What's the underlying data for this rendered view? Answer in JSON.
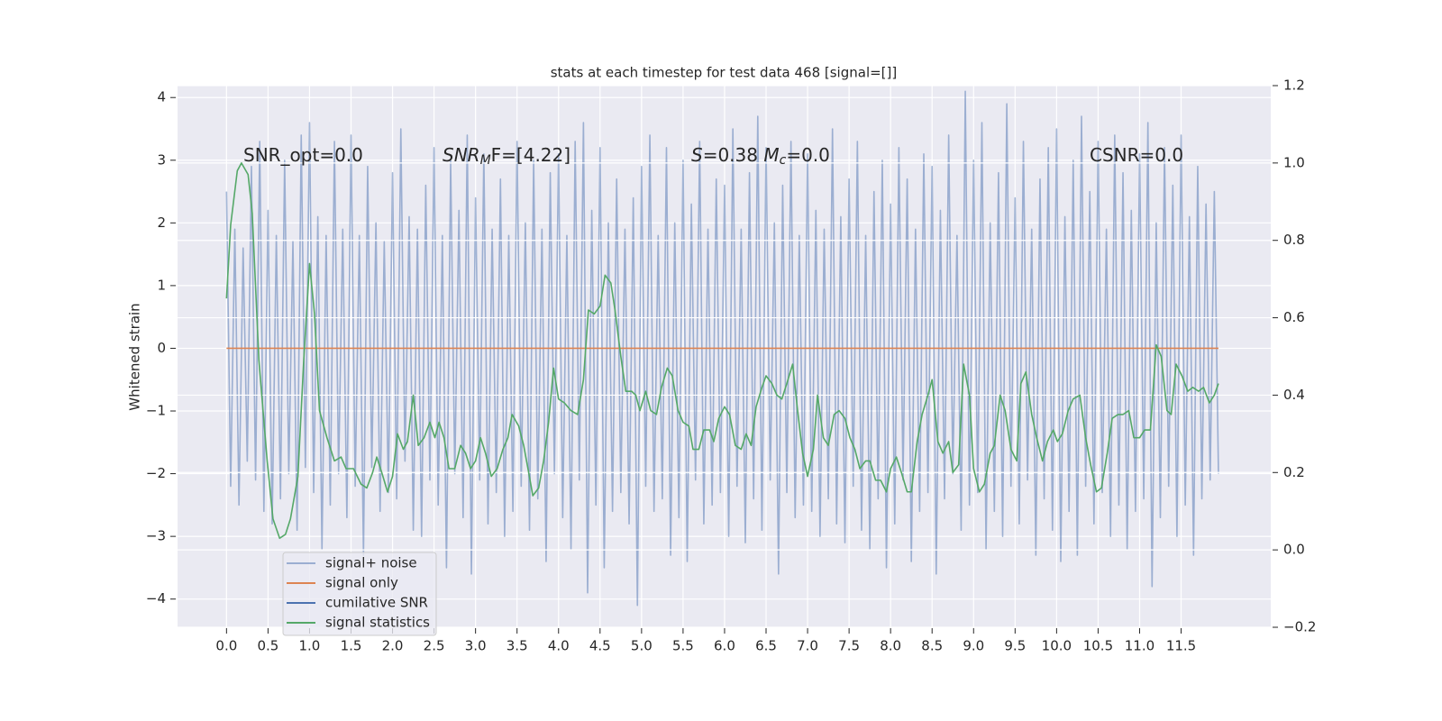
{
  "chart_data": {
    "type": "line",
    "title": "stats at each timestep for test data 468 [signal=[]]",
    "ylabel": "Whitened strain",
    "xlim": [
      -0.59,
      12.58
    ],
    "ylim": [
      -4.45,
      4.19
    ],
    "y2lim": [
      -0.2,
      1.2
    ],
    "xticks": [
      {
        "value": 0,
        "label": "0.0"
      },
      {
        "value": 0.5,
        "label": "0.5"
      },
      {
        "value": 1,
        "label": "1.0"
      },
      {
        "value": 1.5,
        "label": "1.5"
      },
      {
        "value": 2,
        "label": "2.0"
      },
      {
        "value": 2.5,
        "label": "2.5"
      },
      {
        "value": 3,
        "label": "3.0"
      },
      {
        "value": 3.5,
        "label": "3.5"
      },
      {
        "value": 4,
        "label": "4.0"
      },
      {
        "value": 4.5,
        "label": "4.5"
      },
      {
        "value": 5,
        "label": "5.0"
      },
      {
        "value": 5.5,
        "label": "5.5"
      },
      {
        "value": 6,
        "label": "6.0"
      },
      {
        "value": 6.5,
        "label": "6.5"
      },
      {
        "value": 7,
        "label": "7.0"
      },
      {
        "value": 7.5,
        "label": "7.5"
      },
      {
        "value": 8,
        "label": "8.0"
      },
      {
        "value": 8.5,
        "label": "8.5"
      },
      {
        "value": 9,
        "label": "9.0"
      },
      {
        "value": 9.5,
        "label": "9.5"
      },
      {
        "value": 10,
        "label": "10.0"
      },
      {
        "value": 10.5,
        "label": "10.5"
      },
      {
        "value": 11,
        "label": "11.0"
      },
      {
        "value": 11.5,
        "label": "11.5"
      }
    ],
    "yticks": [
      {
        "value": -4,
        "label": "−4"
      },
      {
        "value": -3,
        "label": "−3"
      },
      {
        "value": -2,
        "label": "−2"
      },
      {
        "value": -1,
        "label": "−1"
      },
      0,
      1,
      2,
      3,
      4
    ],
    "y2ticks": [
      {
        "value": -0.2,
        "label": "−0.2"
      },
      {
        "value": 0,
        "label": "0.0"
      },
      {
        "value": 0.2,
        "label": "0.2"
      },
      {
        "value": 0.4,
        "label": "0.4"
      },
      {
        "value": 0.6,
        "label": "0.6"
      },
      {
        "value": 0.8,
        "label": "0.8"
      },
      {
        "value": 1,
        "label": "1.0"
      },
      {
        "value": 1.2,
        "label": "1.2"
      }
    ],
    "grid": true,
    "legend": "lower left",
    "annotations": [
      [
        {
          "text": "SNR_opt=0.0"
        }
      ],
      [
        {
          "text": "SNR",
          "style": "italic"
        },
        {
          "text": "M",
          "style": "sub"
        },
        {
          "text": "F=[4.22]"
        }
      ],
      [
        {
          "text": "S",
          "style": "italic"
        },
        {
          "text": "=0.38   "
        },
        {
          "text": "M",
          "style": "italic"
        },
        {
          "text": "c",
          "style": "sub"
        },
        {
          "text": "=0.0"
        }
      ],
      [
        {
          "text": "CSNR=0.0"
        }
      ]
    ],
    "series": [
      {
        "name": "signal+ noise",
        "color": "#4c72b0",
        "alpha": 0.5,
        "x": [
          0,
          0.05,
          0.1,
          0.15,
          0.2,
          0.25,
          0.3,
          0.35,
          0.4,
          0.45,
          0.5,
          0.55,
          0.6,
          0.65,
          0.7,
          0.75,
          0.8,
          0.85,
          0.9,
          0.95,
          1,
          1.05,
          1.1,
          1.15,
          1.2,
          1.25,
          1.3,
          1.35,
          1.4,
          1.45,
          1.5,
          1.55,
          1.6,
          1.65,
          1.7,
          1.75,
          1.8,
          1.85,
          1.9,
          1.95,
          2,
          2.05,
          2.1,
          2.15,
          2.2,
          2.25,
          2.3,
          2.35,
          2.4,
          2.45,
          2.5,
          2.55,
          2.6,
          2.65,
          2.7,
          2.75,
          2.8,
          2.85,
          2.9,
          2.95,
          3,
          3.05,
          3.1,
          3.15,
          3.2,
          3.25,
          3.3,
          3.35,
          3.4,
          3.45,
          3.5,
          3.55,
          3.6,
          3.65,
          3.7,
          3.75,
          3.8,
          3.85,
          3.9,
          3.95,
          4,
          4.05,
          4.1,
          4.15,
          4.2,
          4.25,
          4.3,
          4.35,
          4.4,
          4.45,
          4.5,
          4.55,
          4.6,
          4.65,
          4.7,
          4.75,
          4.8,
          4.85,
          4.9,
          4.95,
          5,
          5.05,
          5.1,
          5.15,
          5.2,
          5.25,
          5.3,
          5.35,
          5.4,
          5.45,
          5.5,
          5.55,
          5.6,
          5.65,
          5.7,
          5.75,
          5.8,
          5.85,
          5.9,
          5.95,
          6,
          6.05,
          6.1,
          6.15,
          6.2,
          6.25,
          6.3,
          6.35,
          6.4,
          6.45,
          6.5,
          6.55,
          6.6,
          6.65,
          6.7,
          6.75,
          6.8,
          6.85,
          6.9,
          6.95,
          7,
          7.05,
          7.1,
          7.15,
          7.2,
          7.25,
          7.3,
          7.35,
          7.4,
          7.45,
          7.5,
          7.55,
          7.6,
          7.65,
          7.7,
          7.75,
          7.8,
          7.85,
          7.9,
          7.95,
          8,
          8.05,
          8.1,
          8.15,
          8.2,
          8.25,
          8.3,
          8.35,
          8.4,
          8.45,
          8.5,
          8.55,
          8.6,
          8.65,
          8.7,
          8.75,
          8.8,
          8.85,
          8.9,
          8.95,
          9,
          9.05,
          9.1,
          9.15,
          9.2,
          9.25,
          9.3,
          9.35,
          9.4,
          9.45,
          9.5,
          9.55,
          9.6,
          9.65,
          9.7,
          9.75,
          9.8,
          9.85,
          9.9,
          9.95,
          10,
          10.05,
          10.1,
          10.15,
          10.2,
          10.25,
          10.3,
          10.35,
          10.4,
          10.45,
          10.5,
          10.55,
          10.6,
          10.65,
          10.7,
          10.75,
          10.8,
          10.85,
          10.9,
          10.95,
          11,
          11.05,
          11.1,
          11.15,
          11.2,
          11.25,
          11.3,
          11.35,
          11.4,
          11.45,
          11.5,
          11.55,
          11.6,
          11.65,
          11.7,
          11.75,
          11.8,
          11.85,
          11.9,
          11.95
        ],
        "values": [
          2.5,
          -2.2,
          1.9,
          -2.5,
          1.6,
          -1.8,
          2.9,
          -2.1,
          3.3,
          -2.6,
          2.2,
          -2.8,
          1.8,
          -2.4,
          3.0,
          -2.0,
          1.7,
          -2.9,
          3.4,
          -1.9,
          3.6,
          -2.3,
          2.1,
          -3.2,
          1.8,
          -2.5,
          3.3,
          -2.0,
          1.9,
          -2.7,
          3.4,
          -2.2,
          1.8,
          -3.3,
          2.9,
          -1.9,
          2.0,
          -2.6,
          1.7,
          -2.3,
          2.8,
          -2.4,
          3.5,
          -1.8,
          2.1,
          -2.9,
          1.9,
          -3.0,
          2.6,
          -2.1,
          3.2,
          -2.5,
          1.8,
          -3.5,
          3.0,
          -2.0,
          2.2,
          -2.7,
          3.4,
          -3.6,
          2.4,
          -2.1,
          3.1,
          -2.8,
          1.9,
          -2.3,
          2.7,
          -3.0,
          1.8,
          -2.6,
          3.3,
          -2.2,
          2.0,
          -2.9,
          3.0,
          -2.4,
          1.9,
          -3.4,
          2.8,
          -2.0,
          3.1,
          -2.7,
          1.8,
          -3.2,
          3.3,
          -2.1,
          3.6,
          -3.9,
          2.2,
          -2.5,
          3.2,
          -3.5,
          2.0,
          -2.6,
          2.7,
          -2.3,
          1.9,
          -2.8,
          2.4,
          -4.1,
          2.9,
          -2.2,
          3.4,
          -2.6,
          1.8,
          -2.4,
          3.2,
          -3.3,
          2.0,
          -2.7,
          3.0,
          -3.4,
          2.3,
          -2.1,
          3.3,
          -2.8,
          1.9,
          -2.5,
          2.7,
          -2.3,
          2.6,
          -3.0,
          3.5,
          -2.2,
          1.9,
          -3.1,
          2.8,
          -2.4,
          3.7,
          -2.9,
          3.2,
          -2.1,
          2.0,
          -3.6,
          2.6,
          -2.3,
          3.3,
          -2.7,
          1.8,
          -2.5,
          3.1,
          -2.6,
          2.2,
          -3.0,
          1.9,
          -2.4,
          3.5,
          -2.8,
          2.1,
          -3.1,
          2.7,
          -2.2,
          3.3,
          -2.9,
          1.8,
          -3.2,
          2.5,
          -2.4,
          3.0,
          -3.5,
          2.3,
          -2.8,
          3.2,
          -2.1,
          2.7,
          -3.4,
          1.9,
          -2.6,
          3.1,
          -2.3,
          2.9,
          -3.6,
          2.2,
          -2.4,
          3.4,
          -2.0,
          1.8,
          -2.9,
          4.1,
          -2.5,
          3.0,
          -2.3,
          3.6,
          -3.2,
          2.0,
          -2.6,
          2.8,
          -3.0,
          3.9,
          -2.2,
          2.4,
          -2.8,
          3.3,
          -2.1,
          1.9,
          -3.3,
          2.7,
          -2.4,
          3.2,
          -2.9,
          3.5,
          -3.4,
          2.1,
          -2.6,
          3.0,
          -3.3,
          3.7,
          -2.2,
          2.5,
          -2.8,
          3.3,
          -2.3,
          1.9,
          -3.0,
          3.4,
          -2.5,
          2.8,
          -3.2,
          2.2,
          -2.6,
          3.1,
          -2.4,
          3.6,
          -3.8,
          2.0,
          -2.7,
          3.2,
          -2.2,
          2.6,
          -3.0,
          3.4,
          -2.5,
          2.1,
          -3.3,
          2.9,
          -2.4,
          2.3,
          -2.1,
          2.5,
          -2.0
        ]
      },
      {
        "name": "signal only",
        "color": "#dd8452",
        "alpha": 1,
        "x": [
          0,
          11.95
        ],
        "values": [
          0,
          0
        ]
      },
      {
        "name": "cumilative SNR",
        "color": "#4c72b0",
        "alpha": 1,
        "x": [],
        "values": []
      },
      {
        "name": "signal statistics",
        "color": "#55a868",
        "alpha": 1,
        "axis": "y2",
        "x": [
          0,
          0.05,
          0.13,
          0.18,
          0.26,
          0.31,
          0.39,
          0.49,
          0.56,
          0.64,
          0.71,
          0.77,
          0.86,
          0.93,
          1,
          1.06,
          1.12,
          1.21,
          1.3,
          1.38,
          1.44,
          1.53,
          1.62,
          1.69,
          1.76,
          1.81,
          1.87,
          1.94,
          2,
          2.06,
          2.13,
          2.18,
          2.25,
          2.31,
          2.38,
          2.45,
          2.51,
          2.56,
          2.62,
          2.68,
          2.75,
          2.82,
          2.88,
          2.94,
          3,
          3.06,
          3.12,
          3.19,
          3.26,
          3.33,
          3.39,
          3.44,
          3.52,
          3.58,
          3.64,
          3.69,
          3.76,
          3.82,
          3.88,
          3.94,
          4,
          4.07,
          4.15,
          4.23,
          4.3,
          4.36,
          4.43,
          4.5,
          4.56,
          4.63,
          4.68,
          4.75,
          4.81,
          4.88,
          4.93,
          4.98,
          5.05,
          5.11,
          5.18,
          5.24,
          5.31,
          5.37,
          5.44,
          5.5,
          5.57,
          5.62,
          5.69,
          5.75,
          5.82,
          5.87,
          5.93,
          6,
          6.06,
          6.13,
          6.2,
          6.26,
          6.32,
          6.38,
          6.45,
          6.5,
          6.57,
          6.63,
          6.69,
          6.75,
          6.82,
          6.88,
          6.94,
          7,
          7.07,
          7.12,
          7.19,
          7.25,
          7.32,
          7.38,
          7.45,
          7.51,
          7.57,
          7.63,
          7.7,
          7.75,
          7.82,
          7.88,
          7.95,
          8,
          8.07,
          8.13,
          8.2,
          8.25,
          8.32,
          8.38,
          8.45,
          8.5,
          8.57,
          8.63,
          8.7,
          8.75,
          8.82,
          8.88,
          8.95,
          9,
          9.07,
          9.13,
          9.2,
          9.25,
          9.32,
          9.38,
          9.45,
          9.52,
          9.57,
          9.63,
          9.7,
          9.76,
          9.83,
          9.89,
          9.96,
          10.01,
          10.07,
          10.14,
          10.2,
          10.28,
          10.35,
          10.41,
          10.48,
          10.54,
          10.61,
          10.67,
          10.74,
          10.8,
          10.87,
          10.93,
          11,
          11.06,
          11.13,
          11.2,
          11.26,
          11.33,
          11.38,
          11.44,
          11.51,
          11.58,
          11.64,
          11.71,
          11.77,
          11.84,
          11.9,
          11.95
        ],
        "values": [
          0.65,
          0.84,
          0.98,
          1.0,
          0.97,
          0.87,
          0.49,
          0.23,
          0.08,
          0.03,
          0.04,
          0.08,
          0.19,
          0.49,
          0.74,
          0.61,
          0.36,
          0.29,
          0.23,
          0.24,
          0.21,
          0.21,
          0.17,
          0.16,
          0.2,
          0.24,
          0.2,
          0.15,
          0.19,
          0.3,
          0.26,
          0.28,
          0.4,
          0.27,
          0.29,
          0.33,
          0.29,
          0.33,
          0.29,
          0.21,
          0.21,
          0.27,
          0.25,
          0.21,
          0.23,
          0.29,
          0.25,
          0.19,
          0.21,
          0.26,
          0.29,
          0.35,
          0.32,
          0.27,
          0.2,
          0.14,
          0.16,
          0.23,
          0.33,
          0.47,
          0.39,
          0.38,
          0.36,
          0.35,
          0.44,
          0.62,
          0.61,
          0.63,
          0.71,
          0.69,
          0.62,
          0.5,
          0.41,
          0.41,
          0.4,
          0.36,
          0.41,
          0.36,
          0.35,
          0.42,
          0.47,
          0.45,
          0.36,
          0.33,
          0.32,
          0.26,
          0.26,
          0.31,
          0.31,
          0.28,
          0.34,
          0.37,
          0.35,
          0.27,
          0.26,
          0.3,
          0.27,
          0.37,
          0.42,
          0.45,
          0.43,
          0.4,
          0.39,
          0.43,
          0.48,
          0.36,
          0.25,
          0.19,
          0.26,
          0.4,
          0.29,
          0.27,
          0.35,
          0.36,
          0.34,
          0.29,
          0.26,
          0.21,
          0.23,
          0.23,
          0.18,
          0.18,
          0.15,
          0.21,
          0.24,
          0.2,
          0.15,
          0.15,
          0.28,
          0.35,
          0.4,
          0.44,
          0.28,
          0.25,
          0.28,
          0.2,
          0.22,
          0.48,
          0.4,
          0.21,
          0.15,
          0.17,
          0.25,
          0.27,
          0.4,
          0.36,
          0.26,
          0.23,
          0.43,
          0.46,
          0.35,
          0.29,
          0.23,
          0.28,
          0.31,
          0.28,
          0.3,
          0.36,
          0.39,
          0.4,
          0.29,
          0.22,
          0.15,
          0.16,
          0.25,
          0.34,
          0.35,
          0.35,
          0.36,
          0.29,
          0.29,
          0.31,
          0.31,
          0.53,
          0.5,
          0.36,
          0.35,
          0.48,
          0.45,
          0.41,
          0.42,
          0.41,
          0.42,
          0.38,
          0.4,
          0.43
        ]
      }
    ]
  }
}
